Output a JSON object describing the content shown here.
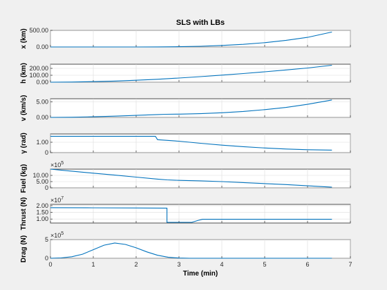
{
  "chart_data": {
    "type": "line",
    "title": "SLS with LBs",
    "xlabel": "Time (min)",
    "xlim": [
      0,
      7
    ],
    "xticks": [
      "0",
      "1",
      "2",
      "3",
      "4",
      "5",
      "6",
      "7"
    ],
    "line_color": "#0072bd",
    "subplots": [
      {
        "id": "x",
        "ylabel": "x (km)",
        "ylim": [
          0,
          500
        ],
        "yticks": [
          {
            "v": 0,
            "t": "0.00"
          },
          {
            "v": 500,
            "t": "500.00"
          }
        ],
        "multiplier": "",
        "points": [
          [
            0,
            0
          ],
          [
            1,
            0
          ],
          [
            2,
            0.5
          ],
          [
            2.5,
            2
          ],
          [
            3,
            8
          ],
          [
            3.5,
            20
          ],
          [
            4,
            45
          ],
          [
            4.5,
            80
          ],
          [
            5,
            130
          ],
          [
            5.5,
            200
          ],
          [
            6,
            290
          ],
          [
            6.57,
            450
          ]
        ]
      },
      {
        "id": "h",
        "ylabel": "h (km)",
        "ylim": [
          0,
          260
        ],
        "yticks": [
          {
            "v": 0,
            "t": "0.00"
          },
          {
            "v": 100,
            "t": "100.00"
          },
          {
            "v": 200,
            "t": "200.00"
          }
        ],
        "multiplier": "",
        "points": [
          [
            0,
            0
          ],
          [
            0.5,
            2
          ],
          [
            1,
            8
          ],
          [
            1.5,
            16
          ],
          [
            2,
            28
          ],
          [
            2.5,
            42
          ],
          [
            3,
            60
          ],
          [
            3.5,
            80
          ],
          [
            4,
            102
          ],
          [
            4.5,
            125
          ],
          [
            5,
            150
          ],
          [
            5.5,
            177
          ],
          [
            6,
            205
          ],
          [
            6.57,
            245
          ]
        ]
      },
      {
        "id": "v",
        "ylabel": "v (km/s)",
        "ylim": [
          0,
          6
        ],
        "yticks": [
          {
            "v": 0,
            "t": "0.00"
          },
          {
            "v": 5,
            "t": "5.00"
          }
        ],
        "multiplier": "",
        "points": [
          [
            0,
            0
          ],
          [
            0.5,
            0.05
          ],
          [
            1,
            0.2
          ],
          [
            1.5,
            0.4
          ],
          [
            2,
            0.65
          ],
          [
            2.5,
            0.9
          ],
          [
            2.7,
            1.0
          ],
          [
            3,
            1.05
          ],
          [
            3.5,
            1.2
          ],
          [
            4,
            1.5
          ],
          [
            4.5,
            1.9
          ],
          [
            5,
            2.5
          ],
          [
            5.5,
            3.2
          ],
          [
            6,
            4.2
          ],
          [
            6.57,
            5.6
          ]
        ]
      },
      {
        "id": "gamma",
        "ylabel": "γ (rad)",
        "ylim": [
          0,
          1.8
        ],
        "yticks": [
          {
            "v": 0,
            "t": "0"
          },
          {
            "v": 1,
            "t": "1.00"
          }
        ],
        "multiplier": "",
        "points": [
          [
            0,
            1.571
          ],
          [
            2.45,
            1.571
          ],
          [
            2.5,
            1.25
          ],
          [
            3,
            1.1
          ],
          [
            3.5,
            0.9
          ],
          [
            4,
            0.72
          ],
          [
            4.5,
            0.57
          ],
          [
            5,
            0.45
          ],
          [
            5.5,
            0.35
          ],
          [
            6,
            0.28
          ],
          [
            6.57,
            0.24
          ]
        ]
      },
      {
        "id": "fuel",
        "ylabel": "Fuel (kg)",
        "ylim": [
          0,
          15
        ],
        "yticks": [
          {
            "v": 0,
            "t": "0"
          },
          {
            "v": 5,
            "t": "5.00"
          },
          {
            "v": 10,
            "t": "10.00"
          }
        ],
        "multiplier": "×10",
        "multiplier_exp": "5",
        "points": [
          [
            0,
            15
          ],
          [
            0.5,
            13.4
          ],
          [
            1,
            11.8
          ],
          [
            1.5,
            10.2
          ],
          [
            2,
            8.6
          ],
          [
            2.5,
            7.0
          ],
          [
            2.72,
            6.4
          ],
          [
            3,
            6.0
          ],
          [
            3.5,
            5.6
          ],
          [
            4,
            5.0
          ],
          [
            4.5,
            4.2
          ],
          [
            5,
            3.4
          ],
          [
            5.5,
            2.6
          ],
          [
            6,
            1.6
          ],
          [
            6.57,
            0.5
          ]
        ]
      },
      {
        "id": "thrust",
        "ylabel": "Thrust (N)",
        "ylim": [
          0.7,
          2.1
        ],
        "yticks": [
          {
            "v": 1,
            "t": "1.00"
          },
          {
            "v": 1.5,
            "t": "1.50"
          },
          {
            "v": 2,
            "t": "2.00"
          }
        ],
        "multiplier": "×10",
        "multiplier_exp": "7",
        "points": [
          [
            0,
            1.85
          ],
          [
            1,
            1.84
          ],
          [
            2,
            1.83
          ],
          [
            2.72,
            1.82
          ],
          [
            2.72,
            0.75
          ],
          [
            3.3,
            0.75
          ],
          [
            3.45,
            0.9
          ],
          [
            3.55,
            0.98
          ],
          [
            6.57,
            0.98
          ]
        ]
      },
      {
        "id": "drag",
        "ylabel": "Drag (N)",
        "ylim": [
          0,
          5
        ],
        "yticks": [
          {
            "v": 0,
            "t": "0"
          },
          {
            "v": 5,
            "t": "5"
          }
        ],
        "multiplier": "×10",
        "multiplier_exp": "5",
        "points": [
          [
            0,
            0
          ],
          [
            0.25,
            0.1
          ],
          [
            0.5,
            0.4
          ],
          [
            0.75,
            1.1
          ],
          [
            1,
            2.3
          ],
          [
            1.25,
            3.5
          ],
          [
            1.5,
            4.1
          ],
          [
            1.75,
            3.7
          ],
          [
            2,
            2.8
          ],
          [
            2.25,
            1.7
          ],
          [
            2.5,
            0.8
          ],
          [
            2.75,
            0.25
          ],
          [
            3,
            0.05
          ],
          [
            3.25,
            0
          ],
          [
            6.57,
            0
          ]
        ]
      }
    ]
  }
}
